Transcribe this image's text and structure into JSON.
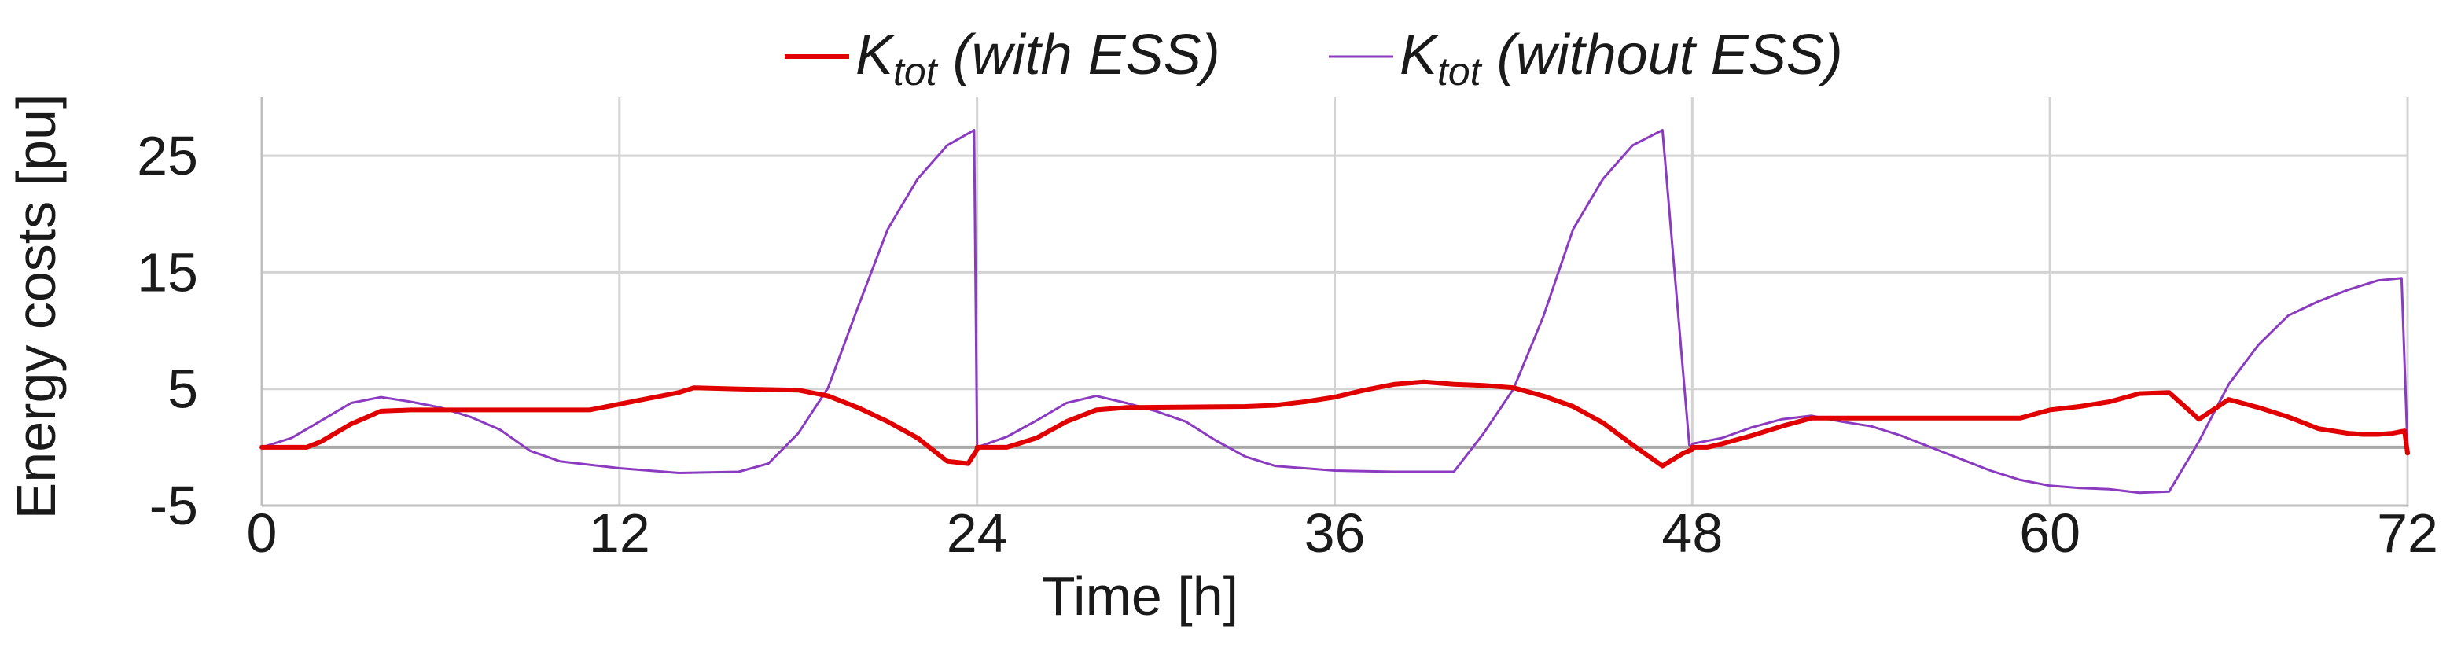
{
  "chart_data": {
    "type": "line",
    "xlabel": "Time [h]",
    "ylabel": "Energy costs [pu]",
    "xlim": [
      0,
      72
    ],
    "ylim": [
      -5,
      30
    ],
    "x_ticks": [
      0,
      12,
      24,
      36,
      48,
      60,
      72
    ],
    "y_ticks": [
      -5,
      5,
      15,
      25
    ],
    "grid": true,
    "legend_position": "top-center",
    "series": [
      {
        "name": "K_tot (with ESS)",
        "legend_main": "K",
        "legend_sub": "tot",
        "legend_tail": " (with ESS)",
        "color": "#e00000",
        "x": [
          0,
          1.5,
          2,
          3,
          4,
          5,
          8,
          11,
          12,
          13,
          14,
          14.5,
          16,
          18,
          19,
          20,
          21,
          22,
          23,
          23.7,
          24,
          24,
          25,
          26,
          27,
          28,
          29,
          33,
          34,
          35,
          36,
          37,
          38,
          39,
          40,
          41,
          42,
          43,
          44,
          45,
          46,
          47,
          47.7,
          48,
          48,
          48.5,
          49,
          50,
          51,
          52,
          53,
          55,
          57,
          59,
          60,
          61,
          62,
          63,
          64,
          65,
          66,
          67,
          68,
          69,
          70,
          70.5,
          71,
          71.5,
          71.9,
          72
        ],
        "y": [
          0,
          0,
          0.5,
          2,
          3.1,
          3.2,
          3.2,
          3.2,
          3.7,
          4.2,
          4.7,
          5.1,
          5,
          4.9,
          4.4,
          3.4,
          2.2,
          0.8,
          -1.2,
          -1.4,
          -0.2,
          0,
          0,
          0.8,
          2.2,
          3.2,
          3.4,
          3.5,
          3.6,
          3.9,
          4.3,
          4.9,
          5.4,
          5.6,
          5.4,
          5.3,
          5.1,
          4.4,
          3.5,
          2.1,
          0.2,
          -1.6,
          -0.5,
          -0.2,
          0,
          0,
          0.3,
          1,
          1.8,
          2.5,
          2.5,
          2.5,
          2.5,
          2.5,
          3.2,
          3.5,
          3.9,
          4.6,
          4.7,
          2.4,
          4.1,
          3.4,
          2.6,
          1.6,
          1.2,
          1.1,
          1.1,
          1.2,
          1.4,
          -0.5
        ]
      },
      {
        "name": "K_tot (without ESS)",
        "legend_main": "K",
        "legend_sub": "tot",
        "legend_tail": " (without ESS)",
        "color": "#8b3bbf",
        "x": [
          0,
          1,
          2,
          3,
          4,
          5,
          6,
          7,
          8,
          9,
          10,
          12,
          14,
          16,
          17,
          18,
          19,
          20,
          21,
          22,
          23,
          23.9,
          24,
          24,
          25,
          26,
          27,
          28,
          29,
          30,
          31,
          32,
          33,
          34,
          36,
          38,
          40,
          41,
          42,
          43,
          44,
          45,
          46,
          47,
          47.9,
          48,
          48,
          49,
          50,
          51,
          52,
          53,
          54,
          55,
          56,
          57,
          58,
          59,
          60,
          61,
          62,
          63,
          64,
          65,
          66,
          67,
          68,
          69,
          70,
          71,
          71.8,
          72
        ],
        "y": [
          0,
          0.8,
          2.3,
          3.8,
          4.3,
          3.9,
          3.4,
          2.6,
          1.5,
          -0.3,
          -1.2,
          -1.8,
          -2.2,
          -2.1,
          -1.4,
          1.2,
          5.1,
          12,
          18.7,
          23,
          25.9,
          27.2,
          0.2,
          0,
          0.9,
          2.3,
          3.8,
          4.4,
          3.8,
          3.1,
          2.2,
          0.6,
          -0.8,
          -1.6,
          -2,
          -2.1,
          -2.1,
          1.2,
          5,
          11.2,
          18.7,
          23,
          25.9,
          27.2,
          0.2,
          0,
          0.3,
          0.8,
          1.7,
          2.4,
          2.7,
          2.2,
          1.8,
          1,
          0,
          -1,
          -2,
          -2.8,
          -3.3,
          -3.5,
          -3.6,
          -3.9,
          -3.8,
          0.5,
          5.4,
          8.8,
          11.3,
          12.5,
          13.5,
          14.3,
          14.5,
          -0.1
        ]
      }
    ]
  }
}
